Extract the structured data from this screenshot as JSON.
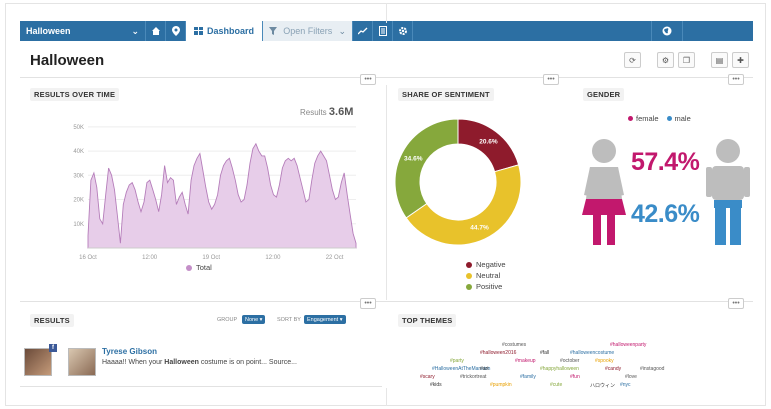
{
  "nav": {
    "title": "Halloween",
    "dashboard_label": "Dashboard",
    "filters_label": "Open Filters"
  },
  "page": {
    "title": "Halloween"
  },
  "results_over_time": {
    "label": "RESULTS OVER TIME",
    "results_prefix": "Results",
    "results_value": "3.6M",
    "legend": "Total"
  },
  "chart_data": [
    {
      "type": "area",
      "title": "RESULTS OVER TIME",
      "x_ticks": [
        "16 Oct",
        "12:00",
        "19 Oct",
        "12:00",
        "22 Oct"
      ],
      "y_ticks": [
        "10K",
        "20K",
        "30K",
        "40K",
        "50K"
      ],
      "ylim": [
        0,
        52000
      ],
      "grid": true,
      "series": [
        {
          "name": "Total",
          "color": "#c48fc8",
          "values": [
            5000,
            28000,
            31000,
            25000,
            12000,
            10000,
            22000,
            33000,
            30000,
            24000,
            13000,
            2000,
            18000,
            23000,
            26000,
            27000,
            24000,
            19000,
            15000,
            19000,
            27000,
            28000,
            24000,
            20000,
            15000,
            22000,
            34000,
            27000,
            29000,
            28000,
            18000,
            21000,
            23000,
            18000,
            14000,
            28000,
            34000,
            37000,
            39000,
            32000,
            25000,
            19000,
            16000,
            18000,
            22000,
            30000,
            34000,
            36000,
            37000,
            33000,
            28000,
            22000,
            19000,
            20000,
            26000,
            35000,
            41000,
            43000,
            40000,
            38000,
            38000,
            33000,
            26000,
            22000,
            21000,
            26000,
            33000,
            36000,
            37000,
            36000,
            37000,
            34000,
            29000,
            24000,
            19000,
            20000,
            28000,
            35000,
            38000,
            40000,
            38000,
            36000,
            30000,
            24000,
            20000,
            21000,
            27000,
            31000,
            22000,
            14000,
            6000,
            2000
          ]
        }
      ]
    },
    {
      "type": "pie",
      "title": "SHARE OF SENTIMENT",
      "categories": [
        "Negative",
        "Neutral",
        "Positive"
      ],
      "values": [
        20.6,
        44.7,
        34.6
      ],
      "labels": [
        "20.6%",
        "44.7%",
        "34.6%"
      ],
      "colors": [
        "#8e1b2c",
        "#e8c22b",
        "#86a83c"
      ],
      "legend_placement": "bottom"
    }
  ],
  "sentiment": {
    "label": "SHARE OF SENTIMENT",
    "legend": [
      "Negative",
      "Neutral",
      "Positive"
    ]
  },
  "gender": {
    "label": "GENDER",
    "female_label": "female",
    "male_label": "male",
    "female_pct": "57.4%",
    "male_pct": "42.6%",
    "female_color": "#c2186d",
    "male_color": "#3a8cc8"
  },
  "results": {
    "label": "RESULTS",
    "group_label": "GROUP",
    "group_value": "None",
    "sort_label": "SORT BY",
    "sort_value": "Engagement",
    "item": {
      "author": "Tyrese Gibson",
      "text_before": "Haaaa!! When your ",
      "text_bold": "Halloween",
      "text_after": " costume is on point... Source..."
    }
  },
  "themes": {
    "label": "TOP THEMES",
    "words": [
      {
        "t": "#costumes",
        "c": "#555"
      },
      {
        "t": "#halloween2016",
        "c": "#8e1b2c"
      },
      {
        "t": "#fall",
        "c": "#333"
      },
      {
        "t": "#halloweencostume",
        "c": "#2c6fa3"
      },
      {
        "t": "#party",
        "c": "#86a83c"
      },
      {
        "t": "#makeup",
        "c": "#c2186d"
      },
      {
        "t": "#october",
        "c": "#555"
      },
      {
        "t": "#spooky",
        "c": "#e8a000"
      },
      {
        "t": "#HalloweenAtTheMansion",
        "c": "#2c6fa3"
      },
      {
        "t": "#art",
        "c": "#333"
      },
      {
        "t": "#happyhalloween",
        "c": "#86a83c"
      },
      {
        "t": "#candy",
        "c": "#8e1b2c"
      },
      {
        "t": "#trickortreat",
        "c": "#555"
      },
      {
        "t": "#family",
        "c": "#2c6fa3"
      },
      {
        "t": "#fun",
        "c": "#c2186d"
      },
      {
        "t": "#love",
        "c": "#555"
      },
      {
        "t": "#kids",
        "c": "#333"
      },
      {
        "t": "#pumpkin",
        "c": "#e8a000"
      },
      {
        "t": "#cute",
        "c": "#86a83c"
      },
      {
        "t": "ハロウィン",
        "c": "#333"
      },
      {
        "t": "#scary",
        "c": "#8e1b2c"
      },
      {
        "t": "#nyc",
        "c": "#2c6fa3"
      },
      {
        "t": "#instagood",
        "c": "#555"
      },
      {
        "t": "#halloweenparty",
        "c": "#c2186d"
      }
    ]
  }
}
